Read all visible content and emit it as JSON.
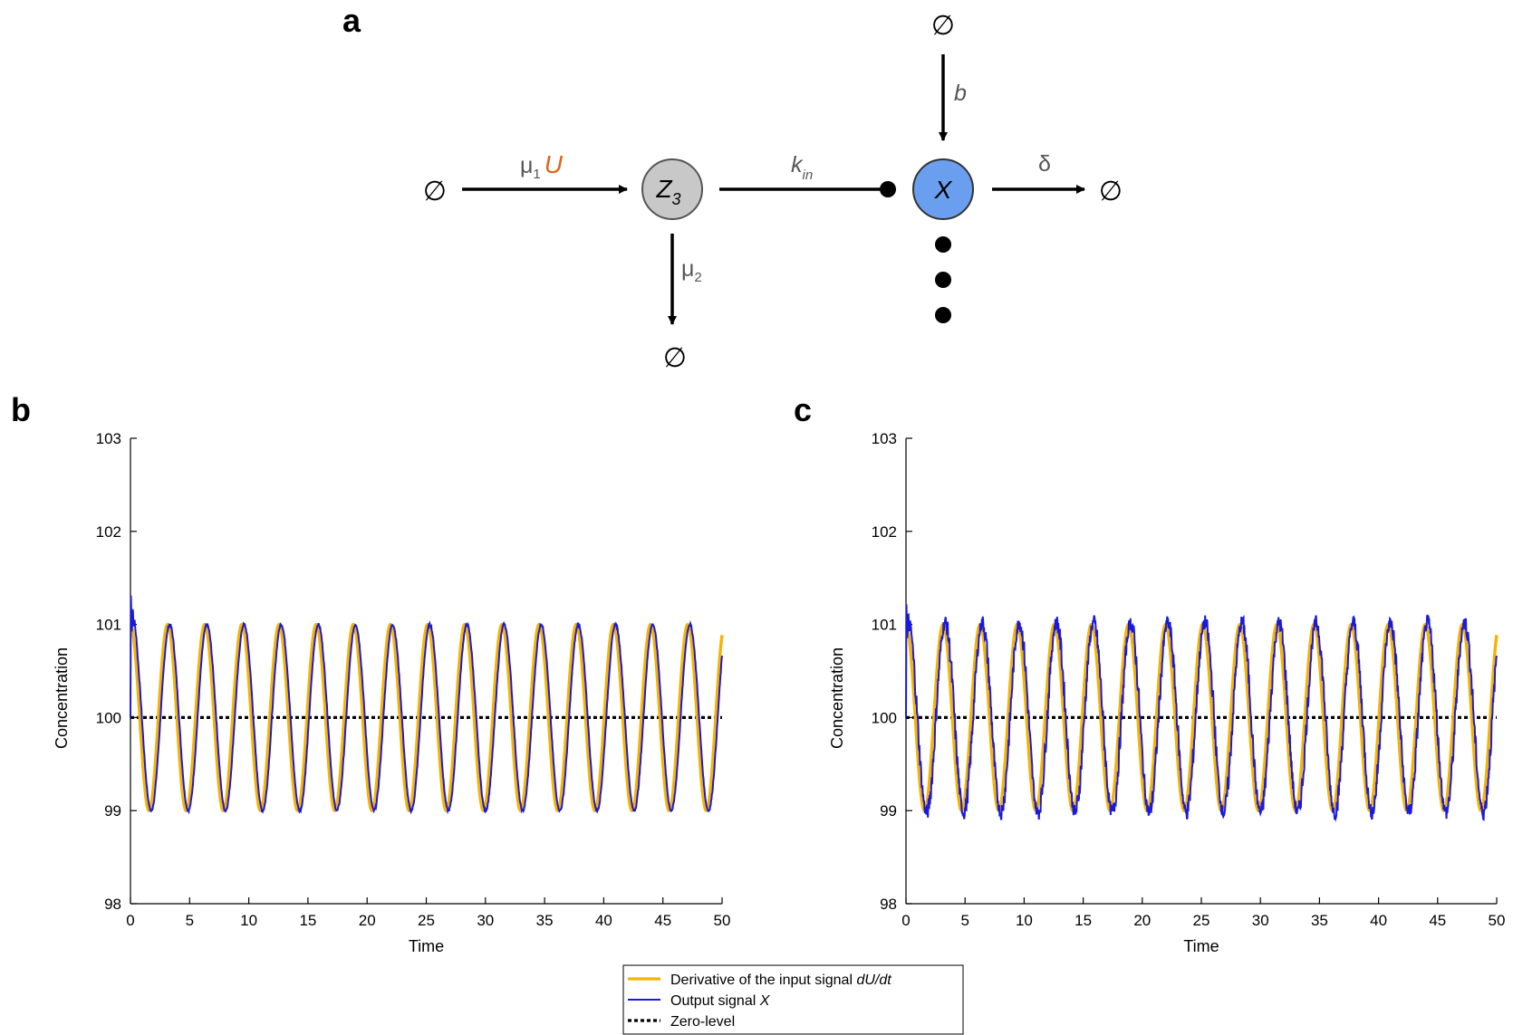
{
  "panels": {
    "a": "a",
    "b": "b",
    "c": "c"
  },
  "diagram": {
    "null_symbol": "∅",
    "node_z": {
      "main": "Z",
      "sub": "3",
      "color": "#c8c8c8"
    },
    "node_x": {
      "label": "X",
      "color": "#6a9ff0"
    },
    "edge_mu1": {
      "greek": "μ",
      "sub": "1",
      "input": "U",
      "input_color": "#e0661b"
    },
    "edge_mu2": {
      "greek": "μ",
      "sub": "2"
    },
    "edge_kin": {
      "main": "k",
      "sub": "in"
    },
    "edge_b": {
      "label": "b"
    },
    "edge_delta": {
      "label": "δ"
    }
  },
  "chart_data": [
    {
      "id": "b",
      "type": "line",
      "title": "",
      "xlabel": "Time",
      "ylabel": "Concentration",
      "xlim": [
        0,
        50
      ],
      "ylim": [
        98,
        103
      ],
      "xticks": [
        "0",
        "5",
        "10",
        "15",
        "20",
        "25",
        "30",
        "35",
        "40",
        "45",
        "50"
      ],
      "yticks": [
        "98",
        "99",
        "100",
        "101",
        "102",
        "103"
      ],
      "grid": false,
      "series": [
        {
          "key": "input",
          "color": "#f5b400",
          "model": {
            "offset": 100,
            "amplitude": 1,
            "period": 3.14,
            "phase_shift": 0
          }
        },
        {
          "key": "output",
          "color": "#1a1adc",
          "model": {
            "offset": 100,
            "amplitude": 1,
            "period": 3.14,
            "phase_shift": 0.18,
            "noise": 0.01,
            "initial_peak": 101.1
          }
        },
        {
          "key": "zero",
          "color": "#000000",
          "value": 100
        }
      ]
    },
    {
      "id": "c",
      "type": "line",
      "title": "",
      "xlabel": "Time",
      "ylabel": "Concentration",
      "xlim": [
        0,
        50
      ],
      "ylim": [
        98,
        103
      ],
      "xticks": [
        "0",
        "5",
        "10",
        "15",
        "20",
        "25",
        "30",
        "35",
        "40",
        "45",
        "50"
      ],
      "yticks": [
        "98",
        "99",
        "100",
        "101",
        "102",
        "103"
      ],
      "grid": false,
      "series": [
        {
          "key": "input",
          "color": "#f5b400",
          "model": {
            "offset": 100,
            "amplitude": 1,
            "period": 3.14,
            "phase_shift": 0
          }
        },
        {
          "key": "output",
          "color": "#1a1adc",
          "model": {
            "offset": 100,
            "amplitude": 1.02,
            "period": 3.14,
            "phase_shift": 0.18,
            "noise": 0.06,
            "initial_peak": 101.0
          }
        },
        {
          "key": "zero",
          "color": "#000000",
          "value": 100
        }
      ]
    }
  ],
  "legend": {
    "position": "bottom-center",
    "items": [
      {
        "key": "input",
        "text": "Derivative of the input signal ",
        "italic": "dU/dt",
        "color": "#f5b400",
        "style": "solid"
      },
      {
        "key": "output",
        "text": "Output signal ",
        "italic": "X",
        "color": "#1a1adc",
        "style": "solid"
      },
      {
        "key": "zero",
        "text": "Zero-level",
        "italic": "",
        "color": "#000000",
        "style": "dotted"
      }
    ]
  }
}
